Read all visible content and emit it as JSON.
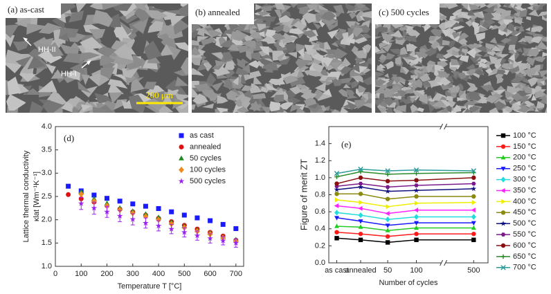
{
  "panels": [
    {
      "label": "(a) as-cast",
      "annotations": [
        "HH-II",
        "HH-I"
      ],
      "scale_bar": "200 μm"
    },
    {
      "label": "(b) annealed"
    },
    {
      "label": "(c) 500 cycles"
    }
  ],
  "chart_data": [
    {
      "type": "scatter",
      "panel_label": "(d)",
      "x_label": "Temperature T [°C]",
      "y_label": [
        "Lattice thermal conductivity",
        "κlat [Wm⁻¹K⁻¹]"
      ],
      "x": [
        50,
        100,
        150,
        200,
        250,
        300,
        350,
        400,
        450,
        500,
        550,
        600,
        650,
        700
      ],
      "xlim": [
        0,
        730
      ],
      "xticks": [
        0,
        100,
        200,
        300,
        400,
        500,
        600,
        700
      ],
      "ylim": [
        1,
        4
      ],
      "yticks": [
        {
          "value": 1,
          "label": "1.0"
        },
        1.5,
        {
          "value": 2,
          "label": "2.0"
        },
        2.5,
        {
          "value": 3,
          "label": "3.0"
        },
        3.5,
        {
          "value": 4,
          "label": "4.0"
        }
      ],
      "legend": "upper right",
      "series": [
        {
          "name": "as cast",
          "color": "#1a1aff",
          "marker": "square",
          "values": [
            2.72,
            2.62,
            2.53,
            2.46,
            2.4,
            2.34,
            2.29,
            2.24,
            2.17,
            2.1,
            2.04,
            1.98,
            1.9,
            1.81
          ]
        },
        {
          "name": "annealed",
          "color": "#e01010",
          "marker": "circle",
          "values": [
            2.54,
            2.45,
            2.38,
            2.3,
            2.23,
            2.17,
            2.1,
            2.03,
            1.96,
            1.88,
            1.8,
            1.73,
            1.65,
            1.56
          ]
        },
        {
          "name": "50 cycles",
          "color": "#208a20",
          "marker": "triangle-up",
          "values": [
            null,
            2.6,
            2.45,
            2.35,
            2.25,
            2.18,
            2.12,
            2.05,
            1.95,
            1.86,
            1.78,
            1.72,
            1.63,
            1.57
          ]
        },
        {
          "name": "100 cycles",
          "color": "#f08a20",
          "marker": "diamond",
          "values": [
            null,
            2.55,
            2.4,
            2.3,
            2.21,
            2.14,
            2.07,
            2.0,
            1.91,
            1.83,
            1.75,
            1.69,
            1.61,
            1.54
          ]
        },
        {
          "name": "500 cycles",
          "color": "#9a22ee",
          "marker": "star",
          "values": [
            null,
            2.35,
            2.25,
            2.17,
            2.08,
            2.01,
            1.93,
            1.87,
            1.8,
            1.73,
            1.66,
            1.6,
            1.55,
            1.5
          ],
          "errors": [
            null,
            0.13,
            0.13,
            0.12,
            0.12,
            0.12,
            0.11,
            0.11,
            0.1,
            0.1,
            0.1,
            0.1,
            0.09,
            0.09
          ]
        }
      ]
    },
    {
      "type": "line",
      "panel_label": "(e)",
      "x_label": "Number of cycles",
      "y_label": "Figure of merit ZT",
      "categories": [
        "as cast",
        "annealed",
        "50",
        "100",
        "500"
      ],
      "axis_break": true,
      "ylim": [
        0,
        1.6
      ],
      "yticks": [
        {
          "value": 0,
          "label": "0.0"
        },
        0.2,
        0.4,
        0.6,
        0.8,
        {
          "value": 1,
          "label": "1.0"
        },
        1.2,
        1.4
      ],
      "legend": "outside right",
      "series": [
        {
          "name": "100 °C",
          "color": "#000000",
          "marker": "square",
          "values": [
            0.29,
            0.27,
            0.24,
            0.27,
            0.27
          ]
        },
        {
          "name": "150 °C",
          "color": "#ff1a1a",
          "marker": "circle",
          "values": [
            0.36,
            0.34,
            0.31,
            0.34,
            0.34
          ]
        },
        {
          "name": "200 °C",
          "color": "#22cc22",
          "marker": "triangle-up",
          "values": [
            0.43,
            0.42,
            0.38,
            0.41,
            0.41
          ]
        },
        {
          "name": "250 °C",
          "color": "#1a1aff",
          "marker": "triangle-down",
          "values": [
            0.53,
            0.49,
            0.44,
            0.47,
            0.47
          ]
        },
        {
          "name": "300 °C",
          "color": "#22dddd",
          "marker": "diamond",
          "values": [
            0.59,
            0.56,
            0.51,
            0.54,
            0.54
          ]
        },
        {
          "name": "350 °C",
          "color": "#ff22ff",
          "marker": "triangle-left",
          "values": [
            0.67,
            0.64,
            0.58,
            0.62,
            0.62
          ]
        },
        {
          "name": "400 °C",
          "color": "#eeee00",
          "marker": "triangle-right",
          "values": [
            0.74,
            0.71,
            0.66,
            0.7,
            0.71
          ]
        },
        {
          "name": "450 °C",
          "color": "#8a8a10",
          "marker": "circle",
          "values": [
            0.81,
            0.81,
            0.75,
            0.78,
            0.78
          ]
        },
        {
          "name": "500 °C",
          "color": "#101080",
          "marker": "star",
          "values": [
            0.86,
            0.89,
            0.84,
            0.85,
            0.87
          ]
        },
        {
          "name": "550 °C",
          "color": "#7a1a8a",
          "marker": "hexagon",
          "values": [
            0.9,
            0.93,
            0.89,
            0.91,
            0.93
          ]
        },
        {
          "name": "600 °C",
          "color": "#8a1010",
          "marker": "circle",
          "values": [
            0.93,
            1.0,
            0.96,
            0.97,
            1.0
          ]
        },
        {
          "name": "650 °C",
          "color": "#2a8a2a",
          "marker": "plus",
          "values": [
            1.01,
            1.07,
            1.04,
            1.05,
            1.06
          ]
        },
        {
          "name": "700 °C",
          "color": "#2a9a9a",
          "marker": "x",
          "values": [
            1.05,
            1.1,
            1.08,
            1.09,
            1.08
          ]
        }
      ]
    }
  ]
}
